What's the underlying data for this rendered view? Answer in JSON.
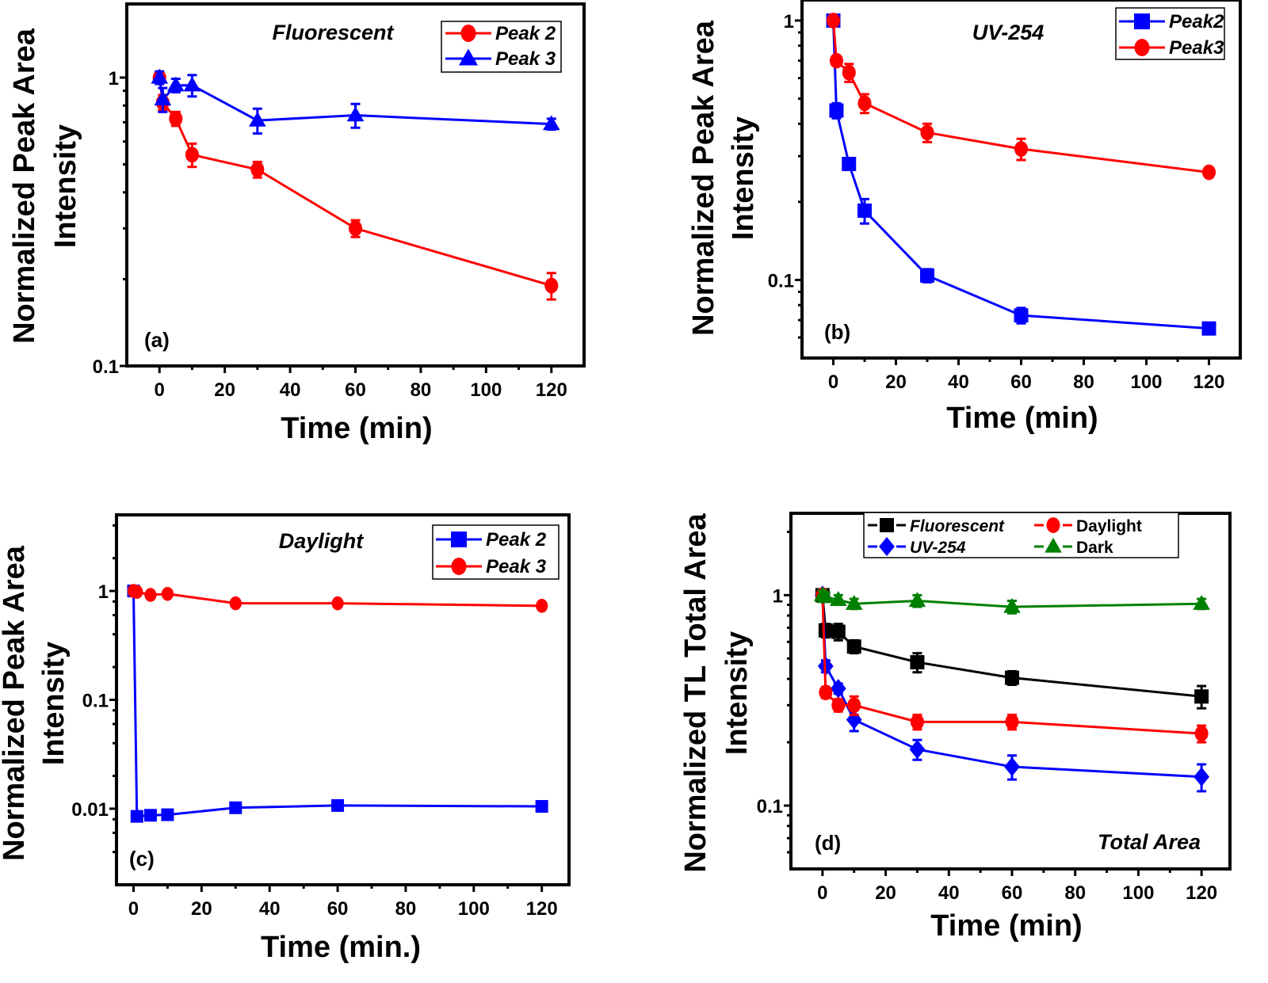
{
  "chart_data": [
    {
      "type": "line",
      "panel_label": "(a)",
      "title": "Fluorescent",
      "xlabel": "Time (min)",
      "ylabel_lines": [
        "Normalized Peak Area",
        "Intensity"
      ],
      "yscale": "log",
      "xlim": [
        -10,
        130
      ],
      "ylim": [
        0.1,
        1.8
      ],
      "xticks": [
        0,
        20,
        40,
        60,
        80,
        100,
        120
      ],
      "yticks": [
        0.1,
        1
      ],
      "ytick_labels": [
        "0.1",
        "1"
      ],
      "grid": false,
      "legend": "top-right",
      "series": [
        {
          "name": "Peak 2",
          "color": "#ff0000",
          "marker": "circle",
          "x": [
            0,
            1,
            5,
            10,
            30,
            60,
            120
          ],
          "y": [
            1.0,
            0.82,
            0.72,
            0.54,
            0.48,
            0.3,
            0.19
          ],
          "yerr": [
            0.03,
            0.05,
            0.04,
            0.05,
            0.03,
            0.02,
            0.02
          ]
        },
        {
          "name": "Peak 3",
          "color": "#0000ff",
          "marker": "triangle",
          "x": [
            0,
            1,
            5,
            10,
            30,
            60,
            120
          ],
          "y": [
            1.0,
            0.84,
            0.94,
            0.94,
            0.71,
            0.74,
            0.69
          ],
          "yerr": [
            0.05,
            0.08,
            0.05,
            0.08,
            0.07,
            0.07,
            0.03
          ]
        }
      ]
    },
    {
      "type": "line",
      "panel_label": "(b)",
      "title": "UV-254",
      "xlabel": "Time (min)",
      "ylabel_lines": [
        "Normalized Peak Area",
        "Intensity"
      ],
      "yscale": "log",
      "xlim": [
        -10,
        130
      ],
      "ylim": [
        0.05,
        1.2
      ],
      "xticks": [
        0,
        20,
        40,
        60,
        80,
        100,
        120
      ],
      "yticks": [
        0.1,
        1
      ],
      "ytick_labels": [
        "0.1",
        "1"
      ],
      "grid": false,
      "legend": "top-right",
      "series": [
        {
          "name": "Peak2",
          "color": "#0000ff",
          "marker": "square",
          "x": [
            0,
            1,
            5,
            10,
            30,
            60,
            120
          ],
          "y": [
            1.0,
            0.45,
            0.28,
            0.185,
            0.104,
            0.073,
            0.065
          ],
          "yerr": [
            0.02,
            0.03,
            0.01,
            0.02,
            0.006,
            0.005,
            0.002
          ]
        },
        {
          "name": "Peak3",
          "color": "#ff0000",
          "marker": "circle",
          "x": [
            0,
            1,
            5,
            10,
            30,
            60,
            120
          ],
          "y": [
            1.0,
            0.7,
            0.63,
            0.48,
            0.37,
            0.32,
            0.26
          ],
          "yerr": [
            0.03,
            0.02,
            0.05,
            0.04,
            0.03,
            0.03,
            0.01
          ]
        }
      ]
    },
    {
      "type": "line",
      "panel_label": "(c)",
      "title": "Daylight",
      "xlabel": "Time (min.)",
      "ylabel_lines": [
        "Normalized Peak Area",
        "Intensity"
      ],
      "yscale": "log",
      "xlim": [
        -5,
        128
      ],
      "ylim": [
        0.002,
        5
      ],
      "xticks": [
        0,
        20,
        40,
        60,
        80,
        100,
        120
      ],
      "yticks": [
        0.01,
        0.1,
        1
      ],
      "ytick_labels": [
        "0.01",
        "0.1",
        "1"
      ],
      "grid": false,
      "legend": "top-right",
      "series": [
        {
          "name": "Peak 2",
          "color": "#0000ff",
          "marker": "square",
          "x": [
            0,
            1,
            5,
            10,
            30,
            60,
            120
          ],
          "y": [
            1.0,
            0.0085,
            0.0087,
            0.0088,
            0.0102,
            0.0107,
            0.0105
          ],
          "yerr": [
            0.02,
            0.0003,
            0.0003,
            0.0003,
            0.0004,
            0.0004,
            0.0004
          ]
        },
        {
          "name": "Peak 3",
          "color": "#ff0000",
          "marker": "circle",
          "x": [
            0,
            1,
            5,
            10,
            30,
            60,
            120
          ],
          "y": [
            1.0,
            0.98,
            0.92,
            0.94,
            0.77,
            0.77,
            0.73
          ],
          "yerr": [
            0.03,
            0.03,
            0.03,
            0.03,
            0.03,
            0.03,
            0.02
          ]
        }
      ]
    },
    {
      "type": "line",
      "panel_label": "(d)",
      "title": "Total Area",
      "xlabel": "Time (min)",
      "ylabel_lines": [
        "Normalized TL Total Area",
        "Intensity"
      ],
      "yscale": "log",
      "xlim": [
        -10,
        129
      ],
      "ylim": [
        0.05,
        2.45
      ],
      "xticks": [
        0,
        20,
        40,
        60,
        80,
        100,
        120
      ],
      "yticks": [
        0.1,
        1
      ],
      "ytick_labels": [
        "0.1",
        "1"
      ],
      "grid": false,
      "legend": "top",
      "series": [
        {
          "name": "Fluorescent",
          "color": "#000000",
          "marker": "square",
          "x": [
            0,
            1,
            5,
            10,
            30,
            60,
            120
          ],
          "y": [
            1.0,
            0.68,
            0.67,
            0.57,
            0.48,
            0.405,
            0.33
          ],
          "yerr": [
            0.03,
            0.05,
            0.06,
            0.04,
            0.05,
            0.03,
            0.04
          ]
        },
        {
          "name": "UV-254",
          "color": "#0000ff",
          "marker": "diamond",
          "x": [
            0,
            1,
            5,
            10,
            30,
            60,
            120
          ],
          "y": [
            1.0,
            0.46,
            0.36,
            0.256,
            0.185,
            0.153,
            0.137
          ],
          "yerr": [
            0.02,
            0.03,
            0.02,
            0.03,
            0.02,
            0.02,
            0.02
          ]
        },
        {
          "name": "Daylight",
          "color": "#ff0000",
          "marker": "circle",
          "x": [
            0,
            1,
            5,
            10,
            30,
            60,
            120
          ],
          "y": [
            1.0,
            0.345,
            0.3,
            0.3,
            0.25,
            0.25,
            0.22
          ],
          "yerr": [
            0.02,
            0.02,
            0.02,
            0.03,
            0.02,
            0.02,
            0.02
          ]
        },
        {
          "name": "Dark",
          "color": "#008000",
          "marker": "triangle",
          "x": [
            0,
            1,
            5,
            10,
            30,
            60,
            120
          ],
          "y": [
            1.0,
            0.98,
            0.95,
            0.91,
            0.94,
            0.88,
            0.91
          ],
          "yerr": [
            0.05,
            0.05,
            0.05,
            0.05,
            0.06,
            0.06,
            0.05
          ]
        }
      ]
    }
  ]
}
